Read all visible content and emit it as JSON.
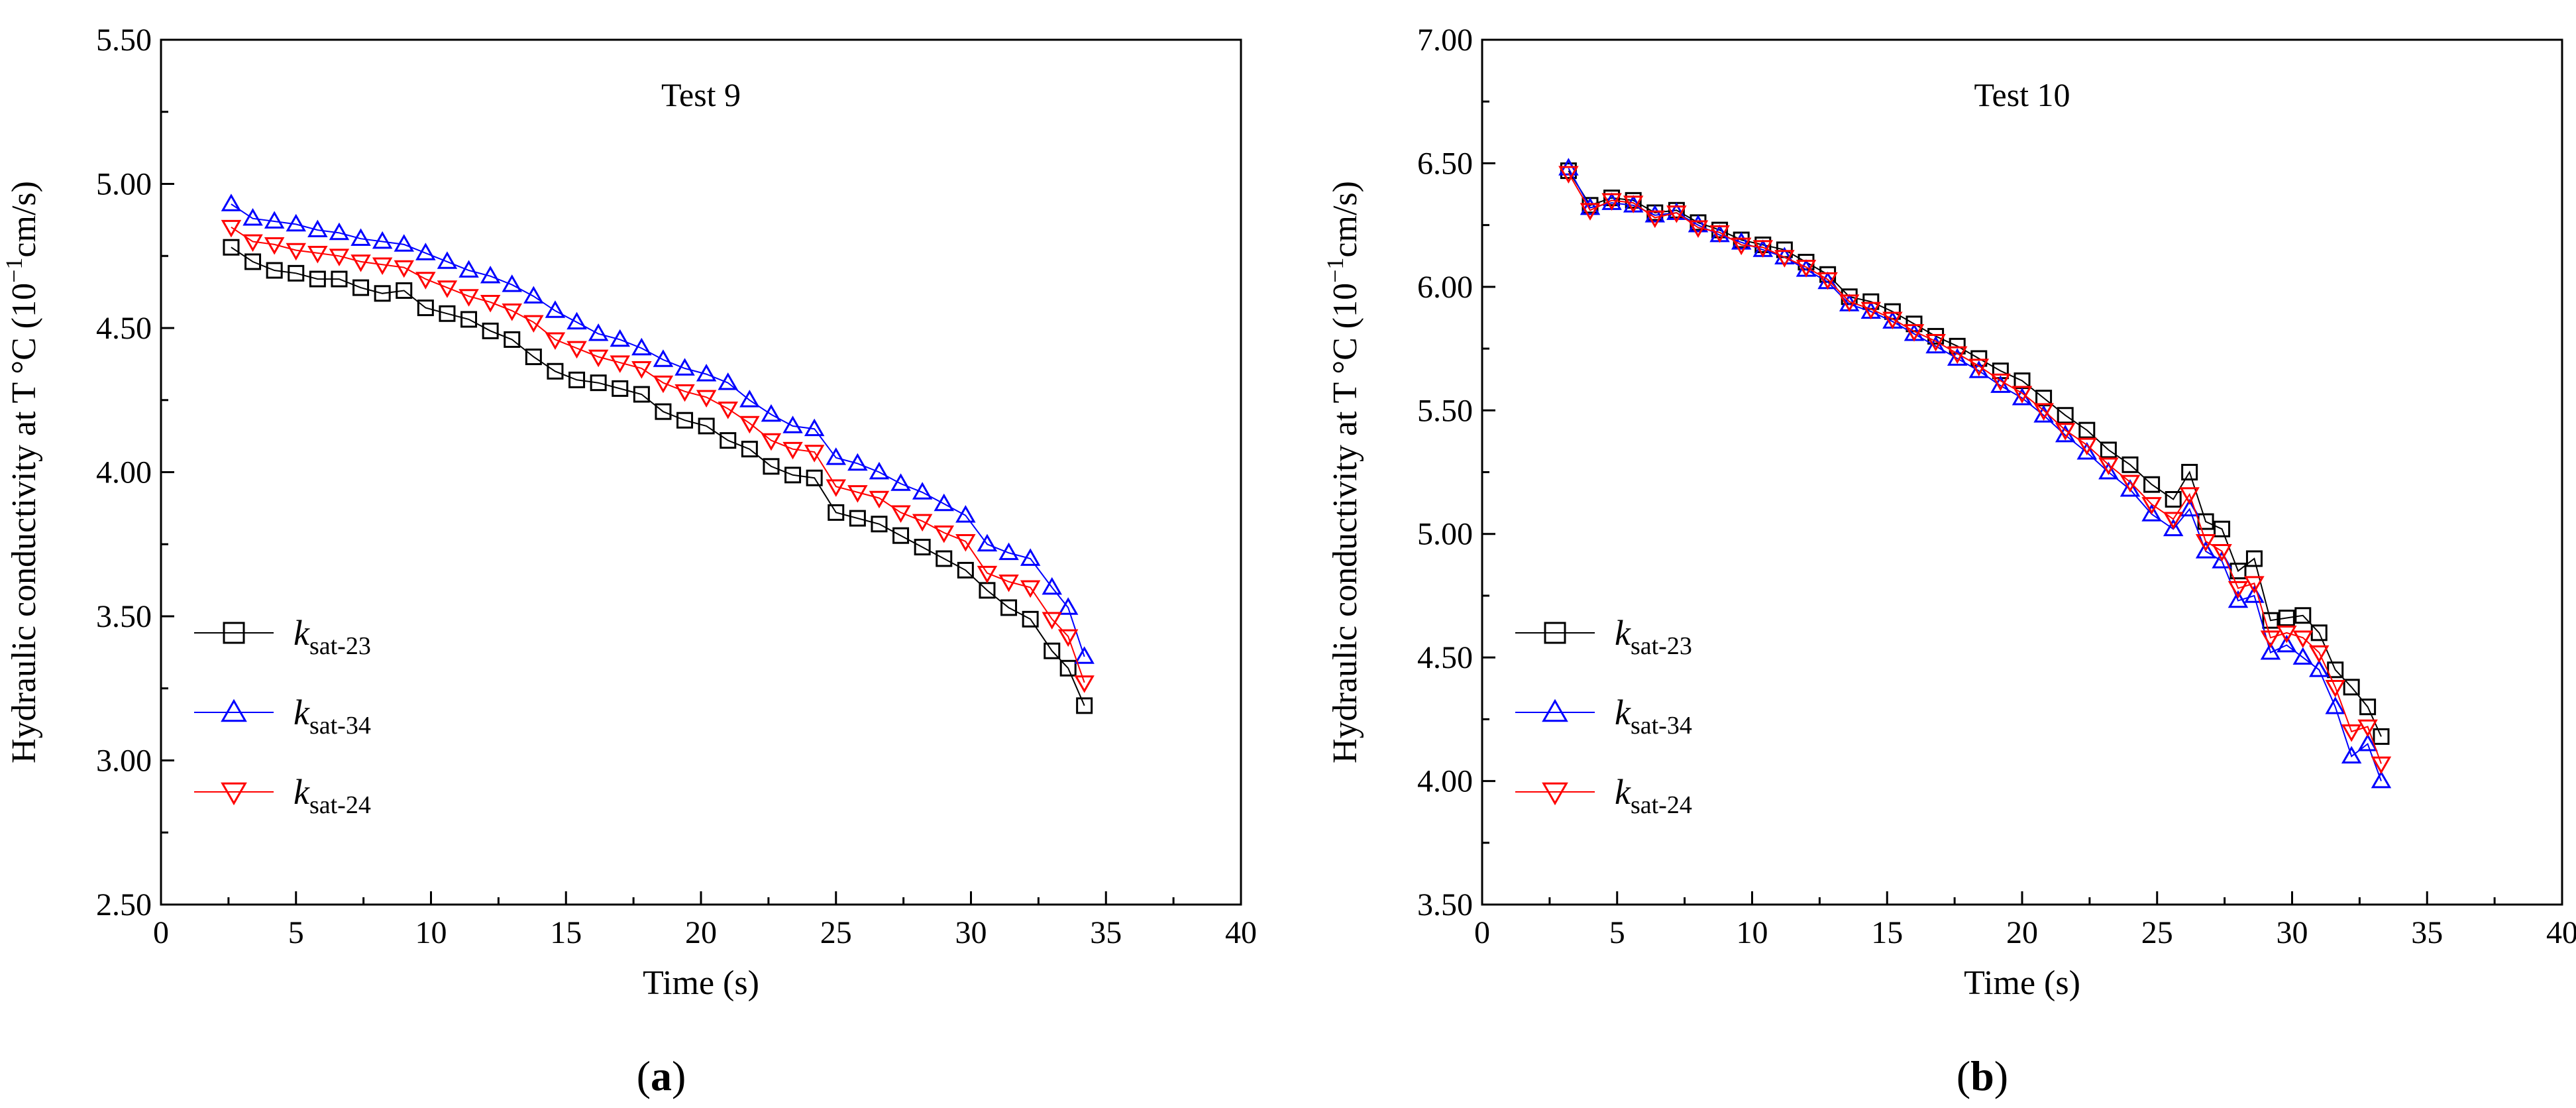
{
  "chart_data": [
    {
      "type": "scatter",
      "panel_label": "a",
      "title": "Test 9",
      "xlabel": "Time (s)",
      "ylabel_main": "Hydraulic conductivity at T ",
      "ylabel_unit_prefix": "°C (10",
      "ylabel_exponent": "−1",
      "ylabel_unit_suffix": "cm/s)",
      "xlim": [
        0,
        40
      ],
      "ylim": [
        2.5,
        5.5
      ],
      "x_ticks": [
        0,
        5,
        10,
        15,
        20,
        25,
        30,
        35,
        40
      ],
      "x_tick_labels": [
        "0",
        "5",
        "10",
        "15",
        "20",
        "25",
        "30",
        "35",
        "40"
      ],
      "y_ticks": [
        2.5,
        3.0,
        3.5,
        4.0,
        4.5,
        5.0,
        5.5
      ],
      "y_tick_labels": [
        "2.50",
        "3.00",
        "3.50",
        "4.00",
        "4.50",
        "5.00",
        "5.50"
      ],
      "legend_position": "bottom-left",
      "series": [
        {
          "name": "k sat-23",
          "main": "k",
          "sub": "sat-23",
          "marker": "square",
          "color": "#000000",
          "x": [
            2.6,
            3.4,
            4.2,
            5.0,
            5.8,
            6.6,
            7.4,
            8.2,
            9.0,
            9.8,
            10.6,
            11.4,
            12.2,
            13.0,
            13.8,
            14.6,
            15.4,
            16.2,
            17.0,
            17.8,
            18.6,
            19.4,
            20.2,
            21.0,
            21.8,
            22.6,
            23.4,
            24.2,
            25.0,
            25.8,
            26.6,
            27.4,
            28.2,
            29.0,
            29.8,
            30.6,
            31.4,
            32.2,
            33.0,
            33.6,
            34.2
          ],
          "y": [
            4.78,
            4.73,
            4.7,
            4.69,
            4.67,
            4.67,
            4.64,
            4.62,
            4.63,
            4.57,
            4.55,
            4.53,
            4.49,
            4.46,
            4.4,
            4.35,
            4.32,
            4.31,
            4.29,
            4.27,
            4.21,
            4.18,
            4.16,
            4.11,
            4.08,
            4.02,
            3.99,
            3.98,
            3.86,
            3.84,
            3.82,
            3.78,
            3.74,
            3.7,
            3.66,
            3.59,
            3.53,
            3.49,
            3.38,
            3.32,
            3.19
          ]
        },
        {
          "name": "k sat-34",
          "main": "k",
          "sub": "sat-34",
          "marker": "triangle-up",
          "color": "#0000ff",
          "x": [
            2.6,
            3.4,
            4.2,
            5.0,
            5.8,
            6.6,
            7.4,
            8.2,
            9.0,
            9.8,
            10.6,
            11.4,
            12.2,
            13.0,
            13.8,
            14.6,
            15.4,
            16.2,
            17.0,
            17.8,
            18.6,
            19.4,
            20.2,
            21.0,
            21.8,
            22.6,
            23.4,
            24.2,
            25.0,
            25.8,
            26.6,
            27.4,
            28.2,
            29.0,
            29.8,
            30.6,
            31.4,
            32.2,
            33.0,
            33.6,
            34.2
          ],
          "y": [
            4.93,
            4.88,
            4.87,
            4.86,
            4.84,
            4.83,
            4.81,
            4.8,
            4.79,
            4.76,
            4.73,
            4.7,
            4.68,
            4.65,
            4.61,
            4.56,
            4.52,
            4.48,
            4.46,
            4.43,
            4.39,
            4.36,
            4.34,
            4.31,
            4.25,
            4.2,
            4.16,
            4.15,
            4.05,
            4.03,
            4.0,
            3.96,
            3.93,
            3.89,
            3.85,
            3.75,
            3.72,
            3.7,
            3.6,
            3.53,
            3.36
          ]
        },
        {
          "name": "k sat-24",
          "main": "k",
          "sub": "sat-24",
          "marker": "triangle-down",
          "color": "#ff0000",
          "x": [
            2.6,
            3.4,
            4.2,
            5.0,
            5.8,
            6.6,
            7.4,
            8.2,
            9.0,
            9.8,
            10.6,
            11.4,
            12.2,
            13.0,
            13.8,
            14.6,
            15.4,
            16.2,
            17.0,
            17.8,
            18.6,
            19.4,
            20.2,
            21.0,
            21.8,
            22.6,
            23.4,
            24.2,
            25.0,
            25.8,
            26.6,
            27.4,
            28.2,
            29.0,
            29.8,
            30.6,
            31.4,
            32.2,
            33.0,
            33.6,
            34.2
          ],
          "y": [
            4.85,
            4.8,
            4.79,
            4.77,
            4.76,
            4.75,
            4.73,
            4.72,
            4.71,
            4.67,
            4.64,
            4.61,
            4.59,
            4.56,
            4.52,
            4.46,
            4.43,
            4.4,
            4.38,
            4.36,
            4.31,
            4.28,
            4.26,
            4.22,
            4.17,
            4.11,
            4.08,
            4.07,
            3.95,
            3.93,
            3.91,
            3.86,
            3.83,
            3.79,
            3.76,
            3.65,
            3.62,
            3.6,
            3.49,
            3.43,
            3.27
          ]
        }
      ]
    },
    {
      "type": "scatter",
      "panel_label": "b",
      "title": "Test 10",
      "xlabel": "Time (s)",
      "ylabel_main": "Hydraulic conductivity at T ",
      "ylabel_unit_prefix": "°C (10",
      "ylabel_exponent": "−1",
      "ylabel_unit_suffix": "cm/s)",
      "xlim": [
        0,
        40
      ],
      "ylim": [
        3.5,
        7.0
      ],
      "x_ticks": [
        0,
        5,
        10,
        15,
        20,
        25,
        30,
        35,
        40
      ],
      "x_tick_labels": [
        "0",
        "5",
        "10",
        "15",
        "20",
        "25",
        "30",
        "35",
        "40"
      ],
      "y_ticks": [
        3.5,
        4.0,
        4.5,
        5.0,
        5.5,
        6.0,
        6.5,
        7.0
      ],
      "y_tick_labels": [
        "3.50",
        "4.00",
        "4.50",
        "5.00",
        "5.50",
        "6.00",
        "6.50",
        "7.00"
      ],
      "legend_position": "bottom-left",
      "series": [
        {
          "name": "k sat-23",
          "main": "k",
          "sub": "sat-23",
          "marker": "square",
          "color": "#000000",
          "x": [
            3.2,
            4.0,
            4.8,
            5.6,
            6.4,
            7.2,
            8.0,
            8.8,
            9.6,
            10.4,
            11.2,
            12.0,
            12.8,
            13.6,
            14.4,
            15.2,
            16.0,
            16.8,
            17.6,
            18.4,
            19.2,
            20.0,
            20.8,
            21.6,
            22.4,
            23.2,
            24.0,
            24.8,
            25.6,
            26.2,
            26.8,
            27.4,
            28.0,
            28.6,
            29.2,
            29.8,
            30.4,
            31.0,
            31.6,
            32.2,
            32.8,
            33.3
          ],
          "y": [
            6.47,
            6.33,
            6.36,
            6.35,
            6.3,
            6.31,
            6.26,
            6.23,
            6.19,
            6.17,
            6.15,
            6.1,
            6.05,
            5.96,
            5.94,
            5.9,
            5.85,
            5.8,
            5.76,
            5.71,
            5.66,
            5.62,
            5.55,
            5.48,
            5.42,
            5.34,
            5.28,
            5.2,
            5.14,
            5.25,
            5.05,
            5.02,
            4.85,
            4.9,
            4.65,
            4.66,
            4.67,
            4.6,
            4.45,
            4.38,
            4.3,
            4.18
          ]
        },
        {
          "name": "k sat-34",
          "main": "k",
          "sub": "sat-34",
          "marker": "triangle-up",
          "color": "#0000ff",
          "x": [
            3.2,
            4.0,
            4.8,
            5.6,
            6.4,
            7.2,
            8.0,
            8.8,
            9.6,
            10.4,
            11.2,
            12.0,
            12.8,
            13.6,
            14.4,
            15.2,
            16.0,
            16.8,
            17.6,
            18.4,
            19.2,
            20.0,
            20.8,
            21.6,
            22.4,
            23.2,
            24.0,
            24.8,
            25.6,
            26.2,
            26.8,
            27.4,
            28.0,
            28.6,
            29.2,
            29.8,
            30.4,
            31.0,
            31.6,
            32.2,
            32.8,
            33.3
          ],
          "y": [
            6.48,
            6.32,
            6.34,
            6.33,
            6.29,
            6.3,
            6.25,
            6.21,
            6.18,
            6.15,
            6.12,
            6.07,
            6.02,
            5.93,
            5.9,
            5.86,
            5.81,
            5.76,
            5.71,
            5.66,
            5.6,
            5.55,
            5.48,
            5.4,
            5.33,
            5.25,
            5.18,
            5.08,
            5.02,
            5.1,
            4.93,
            4.89,
            4.73,
            4.75,
            4.52,
            4.55,
            4.5,
            4.45,
            4.3,
            4.1,
            4.15,
            4.0
          ]
        },
        {
          "name": "k sat-24",
          "main": "k",
          "sub": "sat-24",
          "marker": "triangle-down",
          "color": "#ff0000",
          "x": [
            3.2,
            4.0,
            4.8,
            5.6,
            6.4,
            7.2,
            8.0,
            8.8,
            9.6,
            10.4,
            11.2,
            12.0,
            12.8,
            13.6,
            14.4,
            15.2,
            16.0,
            16.8,
            17.6,
            18.4,
            19.2,
            20.0,
            20.8,
            21.6,
            22.4,
            23.2,
            24.0,
            24.8,
            25.6,
            26.2,
            26.8,
            27.4,
            28.0,
            28.6,
            29.2,
            29.8,
            30.4,
            31.0,
            31.6,
            32.2,
            32.8,
            33.3
          ],
          "y": [
            6.46,
            6.31,
            6.35,
            6.34,
            6.28,
            6.3,
            6.24,
            6.22,
            6.17,
            6.16,
            6.12,
            6.08,
            6.03,
            5.94,
            5.91,
            5.87,
            5.82,
            5.78,
            5.73,
            5.68,
            5.62,
            5.57,
            5.5,
            5.42,
            5.36,
            5.28,
            5.21,
            5.12,
            5.06,
            5.16,
            4.97,
            4.93,
            4.78,
            4.8,
            4.58,
            4.6,
            4.58,
            4.52,
            4.38,
            4.2,
            4.22,
            4.07
          ]
        }
      ]
    }
  ]
}
